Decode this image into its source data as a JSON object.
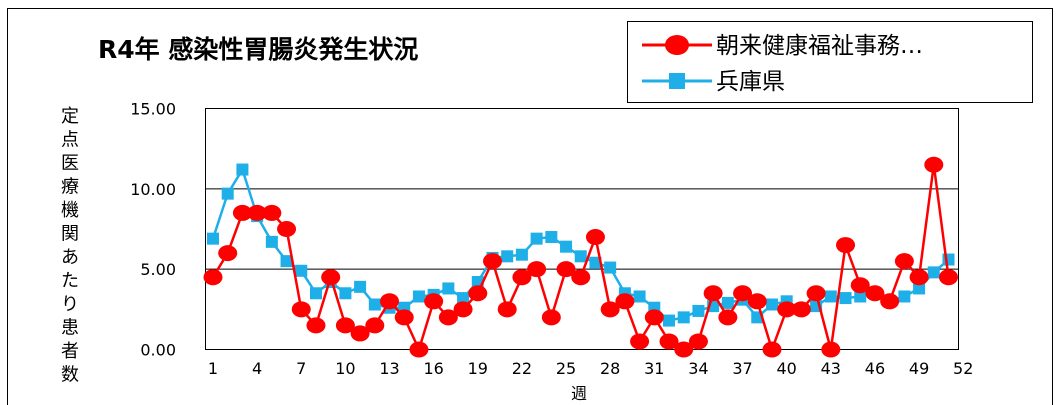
{
  "chart_data": {
    "type": "line",
    "title": "R4年 感染性胃腸炎発生状況",
    "xlabel": "週",
    "ylabel": "定点医療機関あたり患者数",
    "ylim": [
      0,
      15
    ],
    "y_ticks": [
      "0.00",
      "5.00",
      "10.00",
      "15.00"
    ],
    "x_ticks": [
      1,
      4,
      7,
      10,
      13,
      16,
      19,
      22,
      25,
      28,
      31,
      34,
      37,
      40,
      43,
      46,
      49,
      52
    ],
    "x": [
      1,
      2,
      3,
      4,
      5,
      6,
      7,
      8,
      9,
      10,
      11,
      12,
      13,
      14,
      15,
      16,
      17,
      18,
      19,
      20,
      21,
      22,
      23,
      24,
      25,
      26,
      27,
      28,
      29,
      30,
      31,
      32,
      33,
      34,
      35,
      36,
      37,
      38,
      39,
      40,
      41,
      42,
      43,
      44,
      45,
      46,
      47,
      48,
      49,
      50,
      51
    ],
    "grid": "horizontal",
    "legend_position": "top-right",
    "series": [
      {
        "name": "朝来健康福祉事務…",
        "color": "#ff0000",
        "marker": "circle",
        "values": [
          4.5,
          6.0,
          8.5,
          8.5,
          8.5,
          7.5,
          2.5,
          1.5,
          4.5,
          1.5,
          1.0,
          1.5,
          3.0,
          2.0,
          0.0,
          3.0,
          2.0,
          2.5,
          3.5,
          5.5,
          2.5,
          4.5,
          5.0,
          2.0,
          5.0,
          4.5,
          7.0,
          2.5,
          3.0,
          0.5,
          2.0,
          0.5,
          0.0,
          0.5,
          3.5,
          2.0,
          3.5,
          3.0,
          0.0,
          2.5,
          2.5,
          3.5,
          0.0,
          6.5,
          4.0,
          3.5,
          3.0,
          5.5,
          4.5,
          11.5,
          4.5
        ]
      },
      {
        "name": "兵庫県",
        "color": "#1eaee8",
        "marker": "square",
        "values": [
          6.9,
          9.7,
          11.2,
          8.3,
          6.7,
          5.5,
          4.9,
          3.5,
          4.2,
          3.5,
          3.9,
          2.8,
          2.6,
          2.6,
          3.3,
          3.4,
          3.8,
          3.2,
          4.2,
          5.7,
          5.8,
          5.9,
          6.9,
          7.0,
          6.4,
          5.8,
          5.4,
          5.1,
          3.5,
          3.3,
          2.6,
          1.8,
          2.0,
          2.4,
          2.7,
          2.9,
          3.1,
          2.0,
          2.8,
          3.0,
          2.5,
          2.7,
          3.3,
          3.2,
          3.3,
          3.5,
          3.0,
          3.3,
          3.8,
          4.8,
          5.6
        ]
      }
    ]
  }
}
